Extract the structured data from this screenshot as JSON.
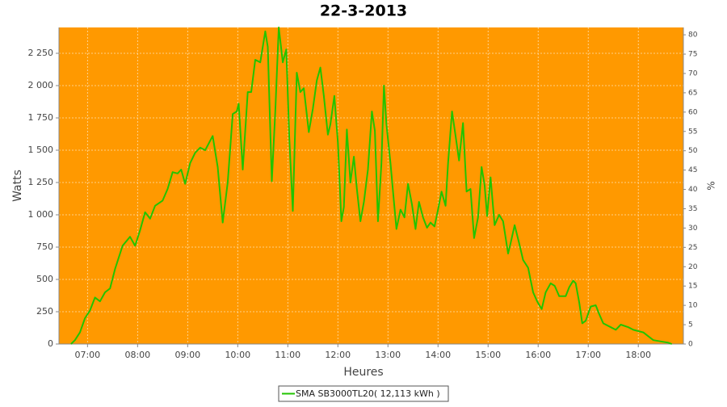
{
  "chart_data": {
    "type": "line",
    "title": "22-3-2013",
    "x_label": "Heures",
    "y_label": "Watts",
    "y2_label": "%",
    "x": [
      6.67,
      6.75,
      6.85,
      6.95,
      7.05,
      7.15,
      7.25,
      7.35,
      7.45,
      7.55,
      7.7,
      7.85,
      7.95,
      8.05,
      8.15,
      8.25,
      8.35,
      8.5,
      8.6,
      8.7,
      8.8,
      8.87,
      8.95,
      9.05,
      9.15,
      9.25,
      9.35,
      9.5,
      9.6,
      9.7,
      9.8,
      9.9,
      9.98,
      10.02,
      10.1,
      10.2,
      10.27,
      10.35,
      10.45,
      10.55,
      10.6,
      10.68,
      10.75,
      10.82,
      10.9,
      10.97,
      11.03,
      11.1,
      11.18,
      11.25,
      11.32,
      11.42,
      11.5,
      11.58,
      11.65,
      11.72,
      11.8,
      11.85,
      11.93,
      12.0,
      12.07,
      12.12,
      12.18,
      12.25,
      12.32,
      12.38,
      12.45,
      12.52,
      12.6,
      12.68,
      12.74,
      12.8,
      12.87,
      12.92,
      12.97,
      13.05,
      13.12,
      13.17,
      13.25,
      13.33,
      13.4,
      13.48,
      13.55,
      13.62,
      13.7,
      13.78,
      13.85,
      13.93,
      14.0,
      14.07,
      14.15,
      14.2,
      14.28,
      14.35,
      14.42,
      14.5,
      14.57,
      14.65,
      14.72,
      14.8,
      14.87,
      14.93,
      14.98,
      15.05,
      15.13,
      15.22,
      15.3,
      15.4,
      15.45,
      15.53,
      15.62,
      15.7,
      15.8,
      15.9,
      15.98,
      16.07,
      16.15,
      16.25,
      16.33,
      16.42,
      16.55,
      16.62,
      16.7,
      16.75,
      16.82,
      16.88,
      16.95,
      17.05,
      17.15,
      17.22,
      17.3,
      17.45,
      17.55,
      17.65,
      17.8,
      17.9,
      18.0,
      18.1,
      18.2,
      18.3,
      18.45,
      18.6,
      18.67
    ],
    "series": [
      {
        "name": "SMA SB3000TL20( 12,113 kWh )",
        "color": "#22c400",
        "values": [
          0,
          30,
          90,
          200,
          260,
          360,
          330,
          400,
          430,
          580,
          760,
          830,
          760,
          880,
          1020,
          970,
          1070,
          1110,
          1200,
          1330,
          1320,
          1350,
          1240,
          1400,
          1480,
          1520,
          1500,
          1610,
          1370,
          940,
          1250,
          1780,
          1800,
          1860,
          1350,
          1950,
          1950,
          2200,
          2180,
          2420,
          2300,
          1260,
          1800,
          2450,
          2180,
          2280,
          1600,
          1030,
          2100,
          1950,
          1980,
          1640,
          1820,
          2040,
          2140,
          1920,
          1620,
          1700,
          1920,
          1560,
          950,
          1060,
          1660,
          1250,
          1450,
          1200,
          950,
          1100,
          1350,
          1800,
          1650,
          950,
          1400,
          2000,
          1700,
          1400,
          1100,
          890,
          1040,
          980,
          1240,
          1080,
          890,
          1100,
          980,
          900,
          940,
          910,
          1040,
          1180,
          1070,
          1400,
          1800,
          1610,
          1420,
          1710,
          1180,
          1200,
          820,
          980,
          1370,
          1230,
          990,
          1290,
          920,
          1000,
          950,
          700,
          780,
          920,
          780,
          650,
          590,
          400,
          330,
          270,
          400,
          470,
          450,
          370,
          370,
          440,
          490,
          470,
          320,
          160,
          180,
          290,
          300,
          230,
          160,
          130,
          110,
          150,
          130,
          110,
          100,
          90,
          60,
          30,
          20,
          10,
          0
        ]
      }
    ],
    "xlim": [
      6.43,
      18.9
    ],
    "xticks": [
      {
        "value": 7,
        "label": "07:00"
      },
      {
        "value": 8,
        "label": "08:00"
      },
      {
        "value": 9,
        "label": "09:00"
      },
      {
        "value": 10,
        "label": "10:00"
      },
      {
        "value": 11,
        "label": "11:00"
      },
      {
        "value": 12,
        "label": "12:00"
      },
      {
        "value": 13,
        "label": "13:00"
      },
      {
        "value": 14,
        "label": "14:00"
      },
      {
        "value": 15,
        "label": "15:00"
      },
      {
        "value": 16,
        "label": "16:00"
      },
      {
        "value": 17,
        "label": "17:00"
      },
      {
        "value": 18,
        "label": "18:00"
      }
    ],
    "ylim": [
      0,
      2450
    ],
    "yticks": [
      0,
      250,
      500,
      750,
      {
        "value": 1000,
        "label": "1 000"
      },
      {
        "value": 1250,
        "label": "1 250"
      },
      {
        "value": 1500,
        "label": "1 500"
      },
      {
        "value": 1750,
        "label": "1 750"
      },
      {
        "value": 2000,
        "label": "2 000"
      },
      {
        "value": 2250,
        "label": "2 250"
      }
    ],
    "y2lim": [
      0,
      81.9
    ],
    "y2ticks": [
      0,
      5,
      10,
      15,
      20,
      25,
      30,
      35,
      40,
      45,
      50,
      55,
      60,
      65,
      70,
      75,
      80
    ],
    "grid": true,
    "plot_background": "#ff9900",
    "legend": "bottom"
  }
}
